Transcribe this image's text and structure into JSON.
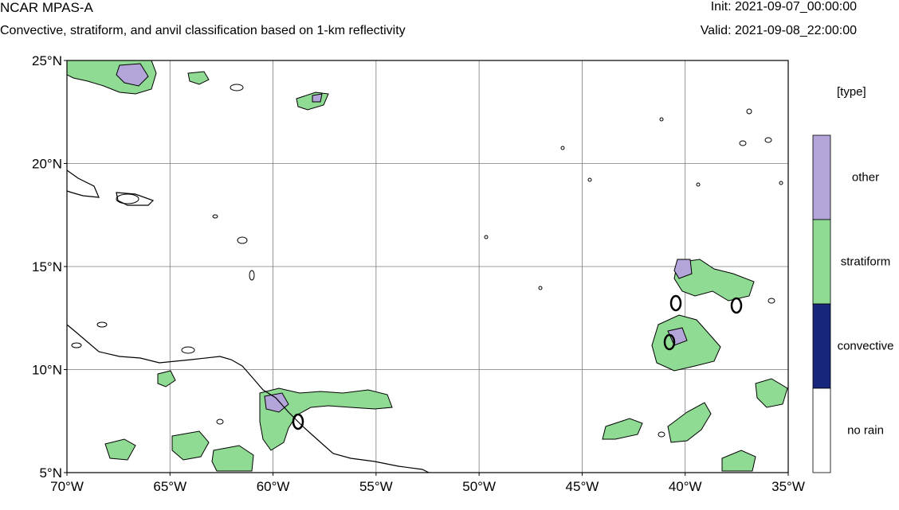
{
  "header": {
    "title": "NCAR MPAS-A",
    "subtitle": "Convective, stratiform, and anvil classification based on 1-km reflectivity",
    "init": "Init: 2021-09-07_00:00:00",
    "valid": "Valid: 2021-09-08_22:00:00"
  },
  "map": {
    "lon_range": [
      -70,
      -35
    ],
    "lat_range": [
      5,
      25
    ],
    "x_ticks": [
      "70°W",
      "65°W",
      "60°W",
      "55°W",
      "50°W",
      "45°W",
      "40°W",
      "35°W"
    ],
    "y_ticks": [
      "25°N",
      "20°N",
      "15°N",
      "10°N",
      "5°N"
    ],
    "gridlines": true
  },
  "legend": {
    "title": "[type]",
    "entries": [
      {
        "label": "other",
        "color": "#b3a5d9"
      },
      {
        "label": "stratiform",
        "color": "#8fdb93"
      },
      {
        "label": "convective",
        "color": "#17267a"
      },
      {
        "label": "no rain",
        "color": "#ffffff"
      }
    ]
  },
  "colors": {
    "frame": "#000000",
    "grid": "#7a7a7a",
    "coastline": "#000000"
  }
}
